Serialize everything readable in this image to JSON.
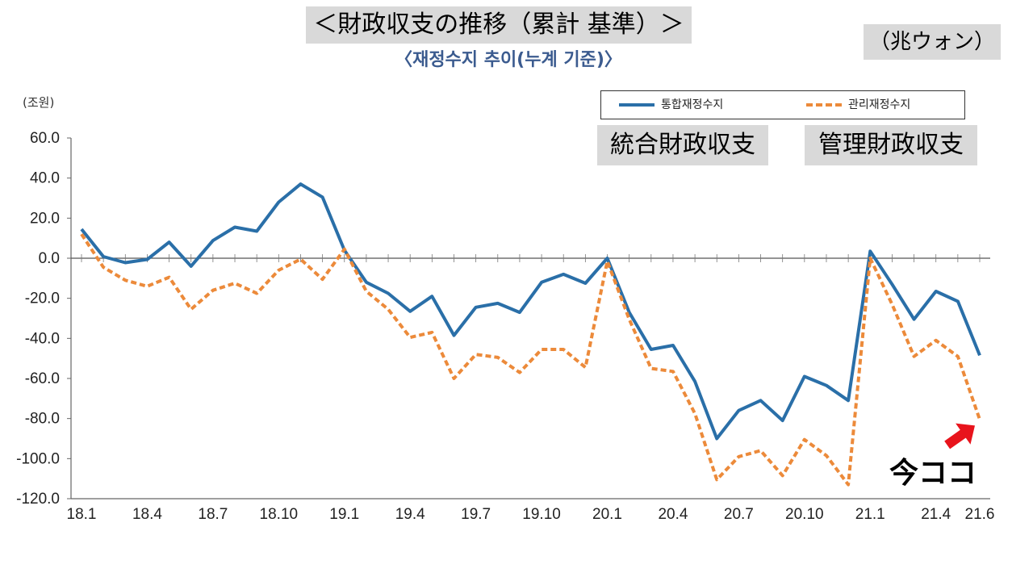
{
  "header": {
    "jp_title": "＜財政収支の推移（累計 基準）＞",
    "kr_title": "〈재정수지 추이(누계 기준)〉",
    "unit_jp": "（兆ウォン）",
    "y_unit": "(조원)"
  },
  "legend": {
    "series1": "통합재정수지",
    "series2": "관리재정수지"
  },
  "tags": {
    "series1_jp": "統合財政収支",
    "series2_jp": "管理財政収支",
    "now_here": "今ココ"
  },
  "colors": {
    "series1": "#2a6fa8",
    "series2": "#ec8a3a",
    "arrow": "#e8141c"
  },
  "chart_data": {
    "type": "line",
    "x": [
      "18.1",
      "18.2",
      "18.3",
      "18.4",
      "18.5",
      "18.6",
      "18.7",
      "18.8",
      "18.9",
      "18.10",
      "18.11",
      "18.12",
      "19.1",
      "19.2",
      "19.3",
      "19.4",
      "19.5",
      "19.6",
      "19.7",
      "19.8",
      "19.9",
      "19.10",
      "19.11",
      "19.12",
      "20.1",
      "20.2",
      "20.3",
      "20.4",
      "20.5",
      "20.6",
      "20.7",
      "20.8",
      "20.9",
      "20.10",
      "20.11",
      "20.12",
      "21.1",
      "21.2",
      "21.3",
      "21.4",
      "21.5",
      "21.6"
    ],
    "xticks": [
      "18.1",
      "18.4",
      "18.7",
      "18.10",
      "19.1",
      "19.4",
      "19.7",
      "19.10",
      "20.1",
      "20.4",
      "20.7",
      "20.10",
      "21.1",
      "21.4",
      "21.6"
    ],
    "xtick_index": [
      0,
      3,
      6,
      9,
      12,
      15,
      18,
      21,
      24,
      27,
      30,
      33,
      36,
      39,
      41
    ],
    "yticks": [
      "60.0",
      "40.0",
      "20.0",
      "0.0",
      "-20.0",
      "-40.0",
      "-60.0",
      "-80.0",
      "-100.0",
      "-120.0"
    ],
    "ylim": [
      -120,
      60
    ],
    "series": [
      {
        "name": "통합재정수지",
        "style": "solid",
        "values": [
          14.5,
          0.8,
          -2.2,
          -0.6,
          8.0,
          -4.0,
          8.8,
          15.5,
          13.5,
          28.0,
          37.0,
          30.5,
          4.0,
          -12.0,
          -17.5,
          -26.5,
          -19.0,
          -38.5,
          -24.5,
          -22.5,
          -27.0,
          -12.0,
          -8.0,
          -12.5,
          0.0,
          -27.0,
          -45.5,
          -43.5,
          -61.5,
          -90.0,
          -76.0,
          -71.0,
          -81.0,
          -59.0,
          -63.5,
          -71.0,
          3.5,
          -13.0,
          -30.5,
          -16.5,
          -21.5,
          -48.5
        ]
      },
      {
        "name": "관리재정수지",
        "style": "dashed",
        "values": [
          12.0,
          -4.5,
          -11.0,
          -14.0,
          -9.5,
          -25.5,
          -16.0,
          -12.5,
          -17.5,
          -6.0,
          -0.5,
          -10.5,
          4.5,
          -16.5,
          -25.5,
          -39.5,
          -37.0,
          -60.0,
          -48.0,
          -49.5,
          -57.0,
          -45.5,
          -45.5,
          -54.5,
          -1.5,
          -30.5,
          -55.0,
          -56.5,
          -77.5,
          -110.5,
          -99.0,
          -96.0,
          -108.5,
          -90.5,
          -98.5,
          -113.0,
          0.0,
          -23.0,
          -49.0,
          -41.0,
          -49.0,
          -80.5
        ]
      }
    ]
  }
}
